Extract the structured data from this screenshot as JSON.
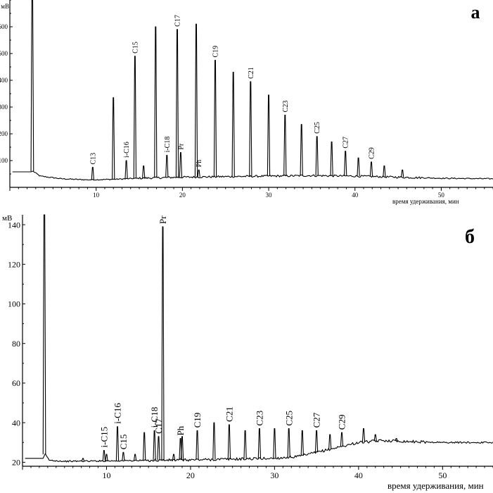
{
  "chart_data": [
    {
      "type": "line",
      "panel_label": "а",
      "ylabel": "мВ",
      "xlabel": "время удерживания, мин",
      "xlim": [
        0,
        56
      ],
      "ylim": [
        0,
        700
      ],
      "x_ticks": [
        10,
        20,
        30,
        40,
        50
      ],
      "y_ticks": [
        100,
        200,
        300,
        400,
        500,
        600
      ],
      "solvent_front": {
        "x": 2.6,
        "height": 700
      },
      "baseline_points": [
        [
          2.7,
          60
        ],
        [
          3.5,
          42
        ],
        [
          6,
          32
        ],
        [
          9,
          28
        ],
        [
          12,
          30
        ],
        [
          15,
          34
        ],
        [
          20,
          38
        ],
        [
          25,
          40
        ],
        [
          30,
          42
        ],
        [
          35,
          44
        ],
        [
          40,
          42
        ],
        [
          45,
          38
        ],
        [
          50,
          34
        ],
        [
          56,
          32
        ]
      ],
      "peaks": [
        {
          "name": "C13",
          "x": 9.6,
          "height": 75
        },
        {
          "name": "",
          "x": 12.0,
          "height": 335
        },
        {
          "name": "i-C16",
          "x": 13.5,
          "height": 100
        },
        {
          "name": "C15",
          "x": 14.5,
          "height": 490
        },
        {
          "name": "",
          "x": 15.5,
          "height": 80
        },
        {
          "name": "",
          "x": 16.9,
          "height": 600
        },
        {
          "name": "i-C18",
          "x": 18.2,
          "height": 120
        },
        {
          "name": "C17",
          "x": 19.4,
          "height": 590
        },
        {
          "name": "Pr",
          "x": 19.8,
          "height": 130
        },
        {
          "name": "",
          "x": 21.6,
          "height": 610
        },
        {
          "name": "Ph",
          "x": 21.9,
          "height": 65
        },
        {
          "name": "C19",
          "x": 23.8,
          "height": 475
        },
        {
          "name": "",
          "x": 25.9,
          "height": 430
        },
        {
          "name": "C21",
          "x": 27.9,
          "height": 395
        },
        {
          "name": "",
          "x": 30.0,
          "height": 345
        },
        {
          "name": "C23",
          "x": 31.9,
          "height": 270
        },
        {
          "name": "",
          "x": 33.8,
          "height": 235
        },
        {
          "name": "C25",
          "x": 35.6,
          "height": 190
        },
        {
          "name": "",
          "x": 37.3,
          "height": 170
        },
        {
          "name": "C27",
          "x": 38.9,
          "height": 135
        },
        {
          "name": "",
          "x": 40.4,
          "height": 110
        },
        {
          "name": "C29",
          "x": 41.9,
          "height": 95
        },
        {
          "name": "",
          "x": 43.4,
          "height": 80
        },
        {
          "name": "",
          "x": 45.5,
          "height": 65
        }
      ]
    },
    {
      "type": "line",
      "panel_label": "б",
      "ylabel": "мВ",
      "xlabel": "время удерживания, мин",
      "xlim": [
        0,
        56
      ],
      "ylim": [
        18,
        145
      ],
      "x_ticks": [
        10,
        20,
        30,
        40,
        50
      ],
      "y_ticks": [
        20,
        40,
        60,
        80,
        100,
        120,
        140
      ],
      "solvent_front": {
        "x": 2.6,
        "height": 145
      },
      "baseline_points": [
        [
          2.7,
          24
        ],
        [
          3.2,
          21
        ],
        [
          5,
          20.5
        ],
        [
          10,
          20.7
        ],
        [
          20,
          21.2
        ],
        [
          30,
          22
        ],
        [
          33,
          23
        ],
        [
          36,
          26
        ],
        [
          38,
          28
        ],
        [
          40,
          30
        ],
        [
          43,
          31
        ],
        [
          46,
          30.5
        ],
        [
          50,
          30
        ],
        [
          56,
          30
        ]
      ],
      "peaks": [
        {
          "name": "",
          "x": 7.2,
          "height": 22
        },
        {
          "name": "i-C15",
          "x": 9.7,
          "height": 26
        },
        {
          "name": "",
          "x": 10.0,
          "height": 24
        },
        {
          "name": "i-C16",
          "x": 11.3,
          "height": 38
        },
        {
          "name": "C15",
          "x": 12.0,
          "height": 25
        },
        {
          "name": "",
          "x": 13.4,
          "height": 24
        },
        {
          "name": "",
          "x": 14.5,
          "height": 35
        },
        {
          "name": "i-C18",
          "x": 15.7,
          "height": 36
        },
        {
          "name": "C17",
          "x": 16.2,
          "height": 33
        },
        {
          "name": "Pr",
          "x": 16.7,
          "height": 139
        },
        {
          "name": "",
          "x": 18.0,
          "height": 24
        },
        {
          "name": "Ph",
          "x": 18.8,
          "height": 32
        },
        {
          "name": "",
          "x": 19.0,
          "height": 33
        },
        {
          "name": "C19",
          "x": 20.8,
          "height": 36
        },
        {
          "name": "",
          "x": 22.8,
          "height": 40
        },
        {
          "name": "C21",
          "x": 24.6,
          "height": 39
        },
        {
          "name": "",
          "x": 26.5,
          "height": 36
        },
        {
          "name": "C23",
          "x": 28.2,
          "height": 37
        },
        {
          "name": "",
          "x": 30.0,
          "height": 37
        },
        {
          "name": "C25",
          "x": 31.7,
          "height": 37
        },
        {
          "name": "",
          "x": 33.3,
          "height": 36
        },
        {
          "name": "C27",
          "x": 35.0,
          "height": 36
        },
        {
          "name": "",
          "x": 36.6,
          "height": 34
        },
        {
          "name": "C29",
          "x": 38.0,
          "height": 35
        },
        {
          "name": "",
          "x": 40.6,
          "height": 37
        },
        {
          "name": "",
          "x": 42.0,
          "height": 34
        },
        {
          "name": "",
          "x": 44.5,
          "height": 32
        }
      ]
    }
  ]
}
